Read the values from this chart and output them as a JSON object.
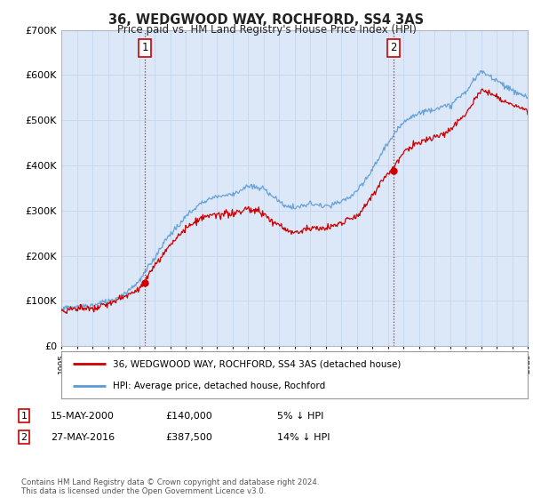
{
  "title": "36, WEDGWOOD WAY, ROCHFORD, SS4 3AS",
  "subtitle": "Price paid vs. HM Land Registry's House Price Index (HPI)",
  "ylim": [
    0,
    700000
  ],
  "yticks": [
    0,
    100000,
    200000,
    300000,
    400000,
    500000,
    600000,
    700000
  ],
  "ytick_labels": [
    "£0",
    "£100K",
    "£200K",
    "£300K",
    "£400K",
    "£500K",
    "£600K",
    "£700K"
  ],
  "hpi_color": "#5b9bd5",
  "price_color": "#cc0000",
  "point1_year": 2000.37,
  "point1_price": 140000,
  "point2_year": 2016.39,
  "point2_price": 387500,
  "legend_line1": "36, WEDGWOOD WAY, ROCHFORD, SS4 3AS (detached house)",
  "legend_line2": "HPI: Average price, detached house, Rochford",
  "table_row1": [
    "1",
    "15-MAY-2000",
    "£140,000",
    "5% ↓ HPI"
  ],
  "table_row2": [
    "2",
    "27-MAY-2016",
    "£387,500",
    "14% ↓ HPI"
  ],
  "footnote": "Contains HM Land Registry data © Crown copyright and database right 2024.\nThis data is licensed under the Open Government Licence v3.0.",
  "background_color": "#ffffff",
  "grid_color": "#c8d8f0",
  "plot_bg": "#dce8f8"
}
